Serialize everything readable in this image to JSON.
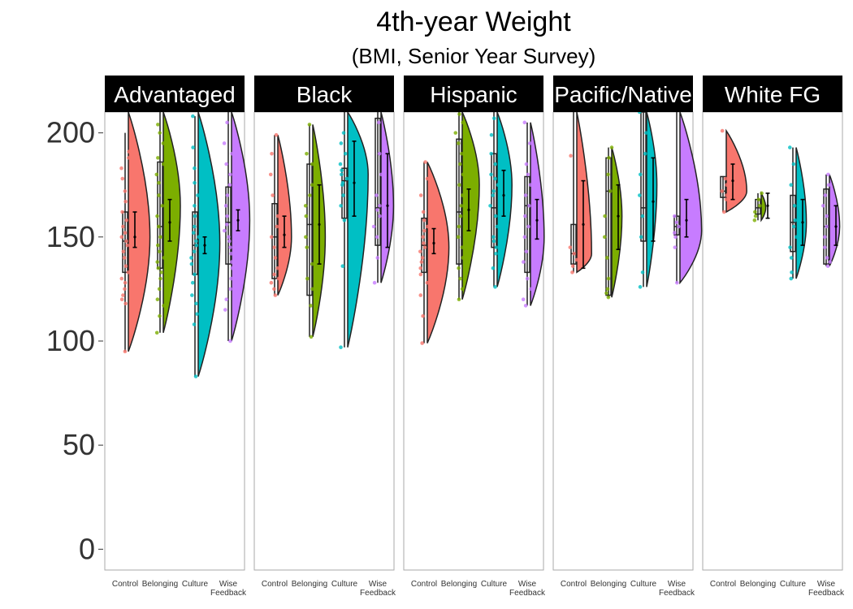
{
  "chart_data": {
    "type": "violin",
    "title": "4th-year Weight",
    "subtitle": "(BMI, Senior Year Survey)",
    "xlabel": "",
    "ylabel": "",
    "ylim": [
      -10,
      210
    ],
    "yticks": [
      0,
      50,
      100,
      150,
      200
    ],
    "ytick_labels": [
      "0",
      "50",
      "100",
      "150",
      "200"
    ],
    "grid": false,
    "legend": "none",
    "categories": [
      "Control",
      "Belonging",
      "Culture",
      "Wise Feedback"
    ],
    "category_colors": [
      "#F8766D",
      "#7CAE00",
      "#00BFC4",
      "#C77CFF"
    ],
    "panels": [
      {
        "name": "Advantaged",
        "groups": [
          {
            "points": [
              95,
              118,
              120,
              122,
              125,
              128,
              130,
              133,
              136,
              140,
              143,
              146,
              148,
              150,
              152,
              155,
              158,
              162,
              167,
              172,
              178,
              183,
              188,
              191
            ],
            "box": [
              133,
              148,
              162
            ],
            "whisk": [
              95,
              200
            ],
            "mean": 150,
            "ci": [
              145,
              162
            ],
            "vmin": 95,
            "vmax": 210,
            "vpeak": 150,
            "vwidth": 0.95
          },
          {
            "points": [
              104,
              112,
              117,
              120,
              125,
              130,
              133,
              135,
              138,
              140,
              143,
              146,
              150,
              155,
              160,
              165,
              170,
              176,
              180,
              185,
              188,
              195,
              200,
              204
            ],
            "box": [
              135,
              155,
              186
            ],
            "whisk": [
              104,
              210
            ],
            "mean": 157,
            "ci": [
              148,
              168
            ],
            "vmin": 104,
            "vmax": 210,
            "vpeak": 165,
            "vwidth": 0.75
          },
          {
            "points": [
              83,
              108,
              113,
              118,
              122,
              128,
              132,
              137,
              140,
              143,
              146,
              148,
              150,
              152,
              155,
              160,
              165,
              170,
              176,
              183,
              193,
              208
            ],
            "box": [
              132,
              146,
              162
            ],
            "whisk": [
              83,
              208
            ],
            "mean": 146,
            "ci": [
              142,
              150
            ],
            "vmin": 83,
            "vmax": 210,
            "vpeak": 147,
            "vwidth": 0.95
          },
          {
            "points": [
              100,
              115,
              120,
              125,
              130,
              135,
              138,
              142,
              145,
              148,
              150,
              153,
              156,
              160,
              165,
              170,
              175,
              180,
              185,
              190,
              195,
              205
            ],
            "box": [
              137,
              157,
              174
            ],
            "whisk": [
              100,
              210
            ],
            "mean": 158,
            "ci": [
              153,
              163
            ],
            "vmin": 100,
            "vmax": 210,
            "vpeak": 158,
            "vwidth": 0.8
          }
        ]
      },
      {
        "name": "Black",
        "groups": [
          {
            "points": [
              122,
              125,
              128,
              130,
              132,
              135,
              140,
              145,
              150,
              155,
              160,
              170,
              180,
              190,
              199
            ],
            "box": [
              130,
              150,
              166
            ],
            "whisk": [
              122,
              199
            ],
            "mean": 151,
            "ci": [
              145,
              160
            ],
            "vmin": 122,
            "vmax": 199,
            "vpeak": 150,
            "vwidth": 0.6
          },
          {
            "points": [
              102,
              117,
              125,
              130,
              137,
              145,
              150,
              160,
              165,
              170,
              175,
              185,
              190,
              204
            ],
            "box": [
              122,
              156,
              185
            ],
            "whisk": [
              102,
              204
            ],
            "mean": 156,
            "ci": [
              137,
              175
            ],
            "vmin": 102,
            "vmax": 204,
            "vpeak": 150,
            "vwidth": 0.55
          },
          {
            "points": [
              97,
              136,
              158,
              165,
              170,
              175,
              176,
              178,
              180,
              182,
              185,
              190,
              195,
              200
            ],
            "box": [
              159,
              177,
              183
            ],
            "whisk": [
              97,
              210
            ],
            "mean": 176,
            "ci": [
              160,
              196
            ],
            "vmin": 97,
            "vmax": 210,
            "vpeak": 180,
            "vwidth": 0.9
          },
          {
            "points": [
              128,
              140,
              150,
              155,
              160,
              163,
              165,
              170,
              180,
              190,
              205
            ],
            "box": [
              146,
              164,
              207
            ],
            "whisk": [
              128,
              210
            ],
            "mean": 165,
            "ci": [
              145,
              190
            ],
            "vmin": 128,
            "vmax": 210,
            "vpeak": 165,
            "vwidth": 0.55
          }
        ]
      },
      {
        "name": "Hispanic",
        "groups": [
          {
            "points": [
              99,
              112,
              122,
              128,
              132,
              135,
              138,
              140,
              143,
              145,
              147,
              150,
              153,
              155,
              158,
              162,
              170,
              178,
              186
            ],
            "box": [
              133,
              146,
              159
            ],
            "whisk": [
              99,
              186
            ],
            "mean": 147,
            "ci": [
              142,
              154
            ],
            "vmin": 99,
            "vmax": 186,
            "vpeak": 145,
            "vwidth": 0.95
          },
          {
            "points": [
              120,
              125,
              130,
              135,
              140,
              145,
              150,
              155,
              160,
              165,
              170,
              175,
              180,
              185,
              190,
              195,
              200,
              205,
              209
            ],
            "box": [
              137,
              162,
              197
            ],
            "whisk": [
              120,
              210
            ],
            "mean": 163,
            "ci": [
              153,
              173
            ],
            "vmin": 120,
            "vmax": 210,
            "vpeak": 175,
            "vwidth": 0.75
          },
          {
            "points": [
              126,
              135,
              142,
              145,
              148,
              150,
              155,
              160,
              165,
              170,
              172,
              175,
              178,
              180,
              185,
              190,
              199,
              207
            ],
            "box": [
              145,
              164,
              190
            ],
            "whisk": [
              126,
              210
            ],
            "mean": 170,
            "ci": [
              160,
              182
            ],
            "vmin": 126,
            "vmax": 210,
            "vpeak": 175,
            "vwidth": 0.65
          },
          {
            "points": [
              117,
              120,
              125,
              130,
              138,
              143,
              150,
              155,
              160,
              165,
              170,
              175,
              180,
              185,
              195,
              205
            ],
            "box": [
              133,
              165,
              179
            ],
            "whisk": [
              117,
              205
            ],
            "mean": 158,
            "ci": [
              149,
              168
            ],
            "vmin": 117,
            "vmax": 205,
            "vpeak": 150,
            "vwidth": 0.6
          }
        ]
      },
      {
        "name": "Pacific/Native",
        "groups": [
          {
            "points": [
              133,
              136,
              139,
              142,
              145,
              189
            ],
            "box": [
              137,
              142,
              156
            ],
            "whisk": [
              133,
              210
            ],
            "mean": 156,
            "ci": [
              135,
              177
            ],
            "vmin": 133,
            "vmax": 210,
            "vpeak": 142,
            "vwidth": 0.65
          },
          {
            "points": [
              121,
              123,
              125,
              130,
              140,
              150,
              160,
              172,
              180,
              188,
              193
            ],
            "box": [
              122,
              172,
              188
            ],
            "whisk": [
              121,
              193
            ],
            "mean": 160,
            "ci": [
              144,
              175
            ],
            "vmin": 121,
            "vmax": 193,
            "vpeak": 160,
            "vwidth": 0.45
          },
          {
            "points": [
              126,
              133,
              150,
              160,
              170,
              180,
              190,
              200,
              210
            ],
            "box": [
              148,
              164,
              210
            ],
            "whisk": [
              126,
              210
            ],
            "mean": 167,
            "ci": [
              148,
              188
            ],
            "vmin": 126,
            "vmax": 210,
            "vpeak": 175,
            "vwidth": 0.45
          },
          {
            "points": [
              128,
              145,
              150,
              152,
              155,
              157,
              160
            ],
            "box": [
              151,
              155,
              160
            ],
            "whisk": [
              128,
              210
            ],
            "mean": 158,
            "ci": [
              150,
              168
            ],
            "vmin": 128,
            "vmax": 210,
            "vpeak": 153,
            "vwidth": 0.95
          }
        ]
      },
      {
        "name": "White FG",
        "groups": [
          {
            "points": [
              162,
              168,
              170,
              172,
              175,
              178,
              201
            ],
            "box": [
              169,
              172,
              179
            ],
            "whisk": [
              162,
              179
            ],
            "mean": 177,
            "ci": [
              168,
              185
            ],
            "vmin": 162,
            "vmax": 201,
            "vpeak": 172,
            "vwidth": 0.9
          },
          {
            "points": [
              158,
              160,
              162,
              165,
              168,
              171
            ],
            "box": [
              161,
              164,
              168
            ],
            "whisk": [
              158,
              171
            ],
            "mean": 165,
            "ci": [
              159,
              171
            ],
            "vmin": 158,
            "vmax": 171,
            "vpeak": 164,
            "vwidth": 0.2
          },
          {
            "points": [
              130,
              133,
              140,
              145,
              150,
              155,
              158,
              165,
              175,
              185,
              193
            ],
            "box": [
              143,
              157,
              170
            ],
            "whisk": [
              130,
              193
            ],
            "mean": 157,
            "ci": [
              146,
              168
            ],
            "vmin": 130,
            "vmax": 193,
            "vpeak": 157,
            "vwidth": 0.45
          },
          {
            "points": [
              136,
              138,
              140,
              145,
              150,
              155,
              160,
              165,
              170,
              175,
              180
            ],
            "box": [
              137,
              155,
              173
            ],
            "whisk": [
              136,
              180
            ],
            "mean": 155,
            "ci": [
              146,
              165
            ],
            "vmin": 136,
            "vmax": 180,
            "vpeak": 155,
            "vwidth": 0.45
          }
        ]
      }
    ]
  }
}
